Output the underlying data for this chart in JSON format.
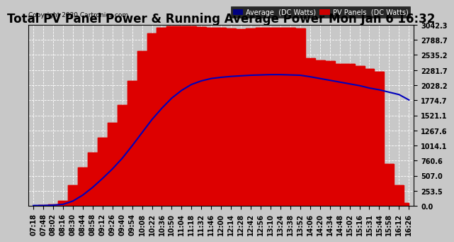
{
  "title": "Total PV Panel Power & Running Average Power Mon Jan 6 16:32",
  "copyright": "Copyright 2020 Cartronics.com",
  "ylabel_ticks": [
    0.0,
    253.5,
    507.0,
    760.6,
    1014.1,
    1267.6,
    1521.1,
    1774.7,
    2028.2,
    2281.7,
    2535.2,
    2788.7,
    3042.3
  ],
  "ylim": [
    0,
    3042.3
  ],
  "background_color": "#c8c8c8",
  "plot_bg_color": "#c8c8c8",
  "grid_color": "white",
  "pv_color": "#dd0000",
  "avg_color": "#0000bb",
  "legend_avg_bg": "#000080",
  "legend_pv_bg": "#cc0000",
  "title_fontsize": 12,
  "tick_fontsize": 7,
  "x_tick_labels": [
    "07:18",
    "07:48",
    "08:02",
    "08:16",
    "08:30",
    "08:44",
    "08:58",
    "09:12",
    "09:26",
    "09:40",
    "09:54",
    "10:08",
    "10:22",
    "10:36",
    "10:50",
    "11:04",
    "11:18",
    "11:32",
    "11:46",
    "12:00",
    "12:14",
    "12:28",
    "12:42",
    "12:56",
    "13:10",
    "13:24",
    "13:38",
    "13:52",
    "14:06",
    "14:20",
    "14:34",
    "14:48",
    "15:02",
    "15:16",
    "15:31",
    "15:44",
    "15:58",
    "16:12",
    "16:26"
  ],
  "pv_data": [
    5,
    8,
    30,
    80,
    350,
    650,
    900,
    1150,
    1400,
    1700,
    2100,
    2600,
    2900,
    3000,
    3020,
    3020,
    3020,
    3010,
    3000,
    3000,
    2980,
    2970,
    2980,
    2990,
    2990,
    2990,
    2990,
    2980,
    2480,
    2450,
    2430,
    2390,
    2380,
    2350,
    2300,
    2250,
    700,
    350,
    50
  ],
  "avg_data": [
    5,
    6,
    12,
    25,
    80,
    180,
    310,
    460,
    620,
    800,
    1010,
    1230,
    1450,
    1640,
    1810,
    1940,
    2040,
    2100,
    2140,
    2160,
    2175,
    2185,
    2195,
    2200,
    2205,
    2205,
    2200,
    2195,
    2170,
    2140,
    2110,
    2080,
    2050,
    2020,
    1980,
    1950,
    1910,
    1870,
    1780
  ]
}
